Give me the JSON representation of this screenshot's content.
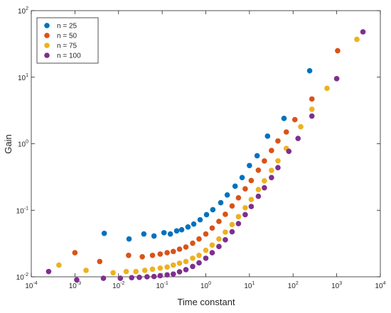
{
  "chart_data": {
    "type": "scatter",
    "xlabel": "Time constant",
    "ylabel": "Gain",
    "xscale": "log",
    "yscale": "log",
    "legend": "upper left",
    "xlim": [
      0.0001,
      10000
    ],
    "ylim": [
      0.01,
      100
    ],
    "xticks": [
      {
        "value": 0.0001,
        "label": "10",
        "exponent": "-4"
      },
      {
        "value": 0.001,
        "label": "10",
        "exponent": "-3"
      },
      {
        "value": 0.01,
        "label": "10",
        "exponent": "-2"
      },
      {
        "value": 0.1,
        "label": "10",
        "exponent": "-1"
      },
      {
        "value": 1,
        "label": "10",
        "exponent": "0"
      },
      {
        "value": 10,
        "label": "10",
        "exponent": "1"
      },
      {
        "value": 100,
        "label": "10",
        "exponent": "2"
      },
      {
        "value": 1000,
        "label": "10",
        "exponent": "3"
      },
      {
        "value": 10000,
        "label": "10",
        "exponent": "4"
      }
    ],
    "yticks": [
      {
        "value": 0.01,
        "label": "10",
        "exponent": "-2"
      },
      {
        "value": 0.1,
        "label": "10",
        "exponent": "-1"
      },
      {
        "value": 1,
        "label": "10",
        "exponent": "0"
      },
      {
        "value": 10,
        "label": "10",
        "exponent": "1"
      },
      {
        "value": 100,
        "label": "10",
        "exponent": "2"
      }
    ],
    "series": [
      {
        "name": "n = 25",
        "color": "#0072bd",
        "x": [
          0.0047,
          0.0174,
          0.038,
          0.065,
          0.11,
          0.154,
          0.215,
          0.28,
          0.39,
          0.53,
          0.74,
          1.04,
          1.45,
          2.2,
          3.1,
          4.7,
          6.8,
          10,
          15,
          26,
          62,
          240
        ],
        "values": [
          0.045,
          0.037,
          0.044,
          0.041,
          0.046,
          0.044,
          0.049,
          0.051,
          0.056,
          0.062,
          0.072,
          0.086,
          0.102,
          0.13,
          0.17,
          0.23,
          0.31,
          0.47,
          0.66,
          1.3,
          2.4,
          12.5
        ]
      },
      {
        "name": "n = 50",
        "color": "#d95319",
        "x": [
          0.001,
          0.0037,
          0.017,
          0.035,
          0.06,
          0.09,
          0.13,
          0.18,
          0.25,
          0.35,
          0.5,
          0.7,
          1,
          1.4,
          2,
          2.8,
          4,
          5.6,
          8,
          11,
          16,
          22,
          32,
          45,
          70,
          110,
          270,
          1050
        ],
        "values": [
          0.023,
          0.017,
          0.021,
          0.02,
          0.021,
          0.022,
          0.023,
          0.024,
          0.026,
          0.028,
          0.032,
          0.037,
          0.044,
          0.054,
          0.068,
          0.087,
          0.116,
          0.154,
          0.21,
          0.28,
          0.4,
          0.55,
          0.79,
          1.1,
          1.5,
          2.3,
          4.7,
          25
        ]
      },
      {
        "name": "n = 75",
        "color": "#edb120",
        "x": [
          0.00043,
          0.0018,
          0.0075,
          0.015,
          0.025,
          0.04,
          0.06,
          0.09,
          0.13,
          0.18,
          0.25,
          0.35,
          0.5,
          0.7,
          1,
          1.4,
          2,
          2.8,
          4,
          5.6,
          8,
          11,
          16,
          22,
          32,
          45,
          70,
          150,
          270,
          600,
          2900
        ],
        "values": [
          0.015,
          0.0125,
          0.0115,
          0.012,
          0.012,
          0.0125,
          0.013,
          0.0135,
          0.014,
          0.015,
          0.016,
          0.017,
          0.019,
          0.021,
          0.025,
          0.03,
          0.037,
          0.047,
          0.061,
          0.08,
          0.109,
          0.145,
          0.205,
          0.277,
          0.397,
          0.553,
          0.85,
          1.8,
          3.3,
          6.8,
          37
        ]
      },
      {
        "name": "n = 100",
        "color": "#7e2f8e",
        "x": [
          0.00025,
          0.0011,
          0.0045,
          0.011,
          0.02,
          0.03,
          0.045,
          0.065,
          0.09,
          0.13,
          0.18,
          0.25,
          0.35,
          0.5,
          0.7,
          1,
          1.4,
          2,
          2.8,
          4,
          5.6,
          8,
          11,
          16,
          22,
          32,
          45,
          80,
          130,
          270,
          1000,
          4000
        ],
        "values": [
          0.012,
          0.009,
          0.0095,
          0.0095,
          0.0097,
          0.0098,
          0.01,
          0.0101,
          0.0104,
          0.0107,
          0.011,
          0.0119,
          0.0128,
          0.0143,
          0.0162,
          0.019,
          0.023,
          0.0285,
          0.036,
          0.0475,
          0.063,
          0.086,
          0.114,
          0.162,
          0.218,
          0.31,
          0.437,
          0.77,
          1.2,
          2.6,
          9.5,
          48
        ]
      }
    ]
  }
}
